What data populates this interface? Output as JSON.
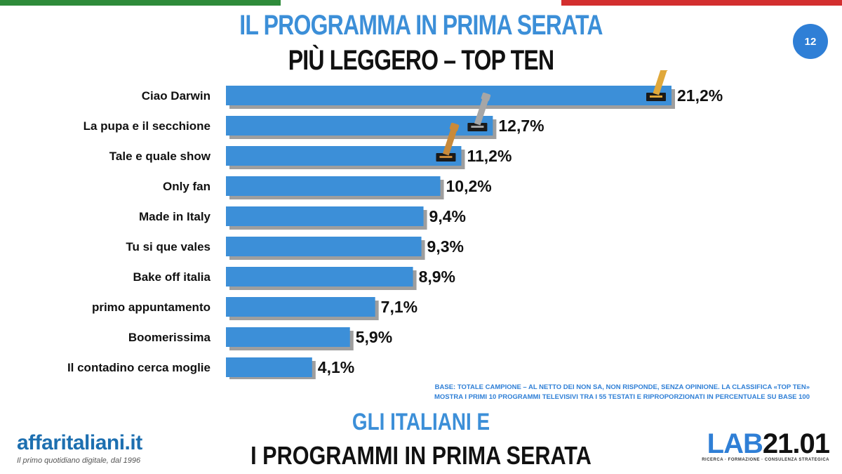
{
  "header": {
    "title_line1": "IL PROGRAMMA IN PRIMA SERATA",
    "title_line2": "PIÙ LEGGERO – TOP TEN",
    "page_number": "12"
  },
  "chart_data": {
    "type": "bar",
    "orientation": "horizontal",
    "categories": [
      "Ciao Darwin",
      "La pupa e il secchione",
      "Tale e quale show",
      "Only fan",
      "Made in Italy",
      "Tu si que vales",
      "Bake off italia",
      "primo appuntamento",
      "Boomerissima",
      "Il contadino cerca moglie"
    ],
    "values": [
      21.2,
      12.7,
      11.2,
      10.2,
      9.4,
      9.3,
      8.9,
      7.1,
      5.9,
      4.1
    ],
    "value_labels": [
      "21,2%",
      "12,7%",
      "11,2%",
      "10,2%",
      "9,4%",
      "9,3%",
      "8,9%",
      "7,1%",
      "5,9%",
      "4,1%"
    ],
    "bar_color": "#3c8fd8",
    "awards": [
      {
        "rank": 1,
        "medal": "gold"
      },
      {
        "rank": 2,
        "medal": "silver"
      },
      {
        "rank": 3,
        "medal": "bronze"
      }
    ]
  },
  "footnote": {
    "line1": "BASE: TOTALE CAMPIONE – AL NETTO DEI NON SA, NON RISPONDE, SENZA OPINIONE. LA CLASSIFICA «TOP TEN»",
    "line2": "MOSTRA I PRIMI 10 PROGRAMMI TELEVISIVI TRA I 55 TESTATI E RIPROPORZIONATI IN PERCENTUALE SU BASE 100"
  },
  "footer": {
    "subtitle_line1": "GLI ITALIANI E",
    "subtitle_line2": "I PROGRAMMI IN PRIMA SERATA",
    "left_logo_text": "affaritaliani.it",
    "left_logo_tagline": "Il primo quotidiano digitale, dal 1996",
    "right_logo_part1": "LAB",
    "right_logo_part2": "21.01",
    "right_logo_tagline": "RICERCA · FORMAZIONE · CONSULENZA STRATEGICA"
  },
  "colors": {
    "accent_blue": "#3c8fd8",
    "flag_green": "#2e8b3a",
    "flag_red": "#d32f2f",
    "gold": "#e0a83a",
    "silver": "#a6a6a6",
    "bronze": "#c98a3a"
  }
}
